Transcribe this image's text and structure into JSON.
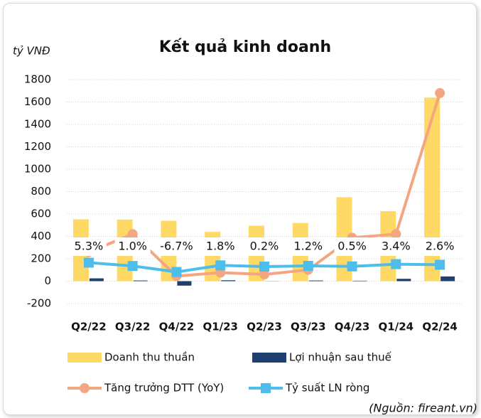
{
  "chart_data": {
    "type": "bar-line",
    "title": "Kết quả kinh doanh",
    "y_label": "tỷ VNĐ",
    "source": "(Nguồn: fireant.vn)",
    "categories": [
      "Q2/22",
      "Q3/22",
      "Q4/22",
      "Q1/23",
      "Q2/23",
      "Q3/23",
      "Q4/23",
      "Q1/24",
      "Q2/24"
    ],
    "ylim": [
      -200,
      1800
    ],
    "yticks": [
      -200,
      0,
      200,
      400,
      600,
      800,
      1000,
      1200,
      1400,
      1600,
      1800
    ],
    "y2lim": [
      -47.6,
      242.2
    ],
    "grid": true,
    "series": [
      {
        "name": "Doanh thu thuần",
        "kind": "bar",
        "color": "#FFD966",
        "values": [
          552,
          550,
          540,
          440,
          495,
          520,
          750,
          625,
          1640
        ]
      },
      {
        "name": "Lợi nhuận sau thuế",
        "kind": "bar",
        "color": "#1F3F6E",
        "values": [
          25,
          6,
          -40,
          8,
          1,
          6,
          4,
          21,
          42
        ]
      },
      {
        "name": "Tăng trưởng DTT (YoY)",
        "kind": "line",
        "marker": "circle",
        "color": "#F4A582",
        "values": [
          260,
          420,
          45,
          76,
          60,
          101,
          388,
          420,
          1680
        ]
      },
      {
        "name": "Tỷ suất LN ròng",
        "kind": "line",
        "marker": "square",
        "axis": "y2",
        "color": "#4DBDEB",
        "values": [
          5.3,
          1.0,
          -6.7,
          1.8,
          0.2,
          1.2,
          0.5,
          3.4,
          2.6
        ],
        "value_labels": [
          "5.3%",
          "1.0%",
          "-6.7%",
          "1.8%",
          "0.2%",
          "1.2%",
          "0.5%",
          "3.4%",
          "2.6%"
        ]
      }
    ]
  }
}
